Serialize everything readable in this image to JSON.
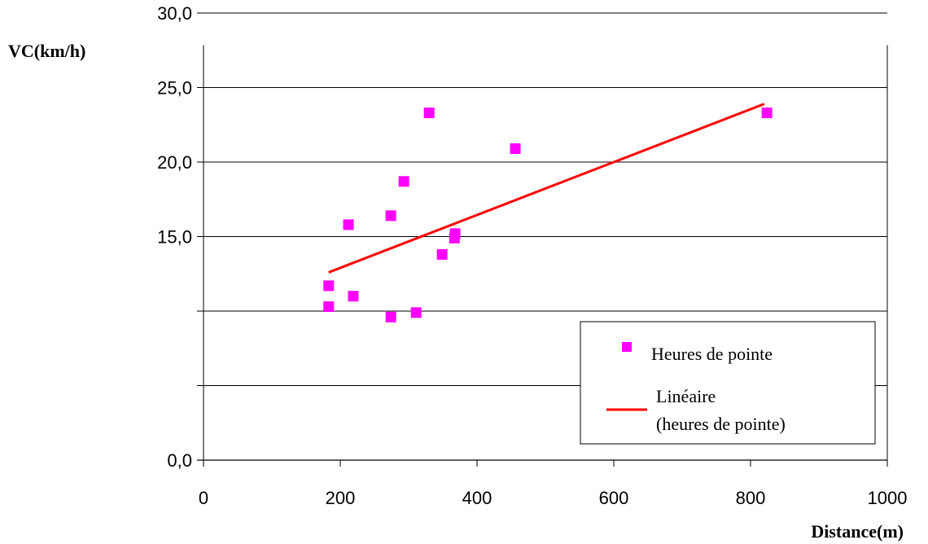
{
  "chart_data": {
    "type": "scatter",
    "title": "",
    "xlabel": "Distance(m)",
    "ylabel": "VC(km/h)",
    "xlim": [
      0,
      1000
    ],
    "ylim": [
      0,
      30
    ],
    "x_ticks": [
      0,
      200,
      400,
      600,
      800,
      1000
    ],
    "x_tick_labels": [
      "0",
      "200",
      "400",
      "600",
      "800",
      "1000"
    ],
    "y_ticks": [
      0,
      5,
      10,
      15,
      20,
      25,
      30
    ],
    "y_tick_labels": [
      "0,0",
      "",
      "",
      "15,0",
      "20,0",
      "25,0",
      "30,0"
    ],
    "grid": "horizontal",
    "legend_position": "lower-right",
    "colors": {
      "points": "#ff00ff",
      "trend": "#ff0000"
    },
    "series": [
      {
        "name": "Heures de pointe",
        "kind": "scatter",
        "x": [
          183,
          183,
          212,
          219,
          274,
          274,
          293,
          311,
          330,
          349,
          367,
          368,
          456,
          824
        ],
        "y": [
          11.7,
          10.3,
          15.8,
          11.0,
          16.4,
          9.6,
          18.7,
          9.9,
          23.3,
          13.8,
          14.9,
          15.2,
          20.9,
          23.3
        ]
      },
      {
        "name": "Linéaire\n(heures de pointe)",
        "name_lines": [
          "Linéaire",
          "(heures de pointe)"
        ],
        "kind": "line",
        "x": [
          183,
          820
        ],
        "y": [
          12.6,
          23.9
        ]
      }
    ]
  }
}
